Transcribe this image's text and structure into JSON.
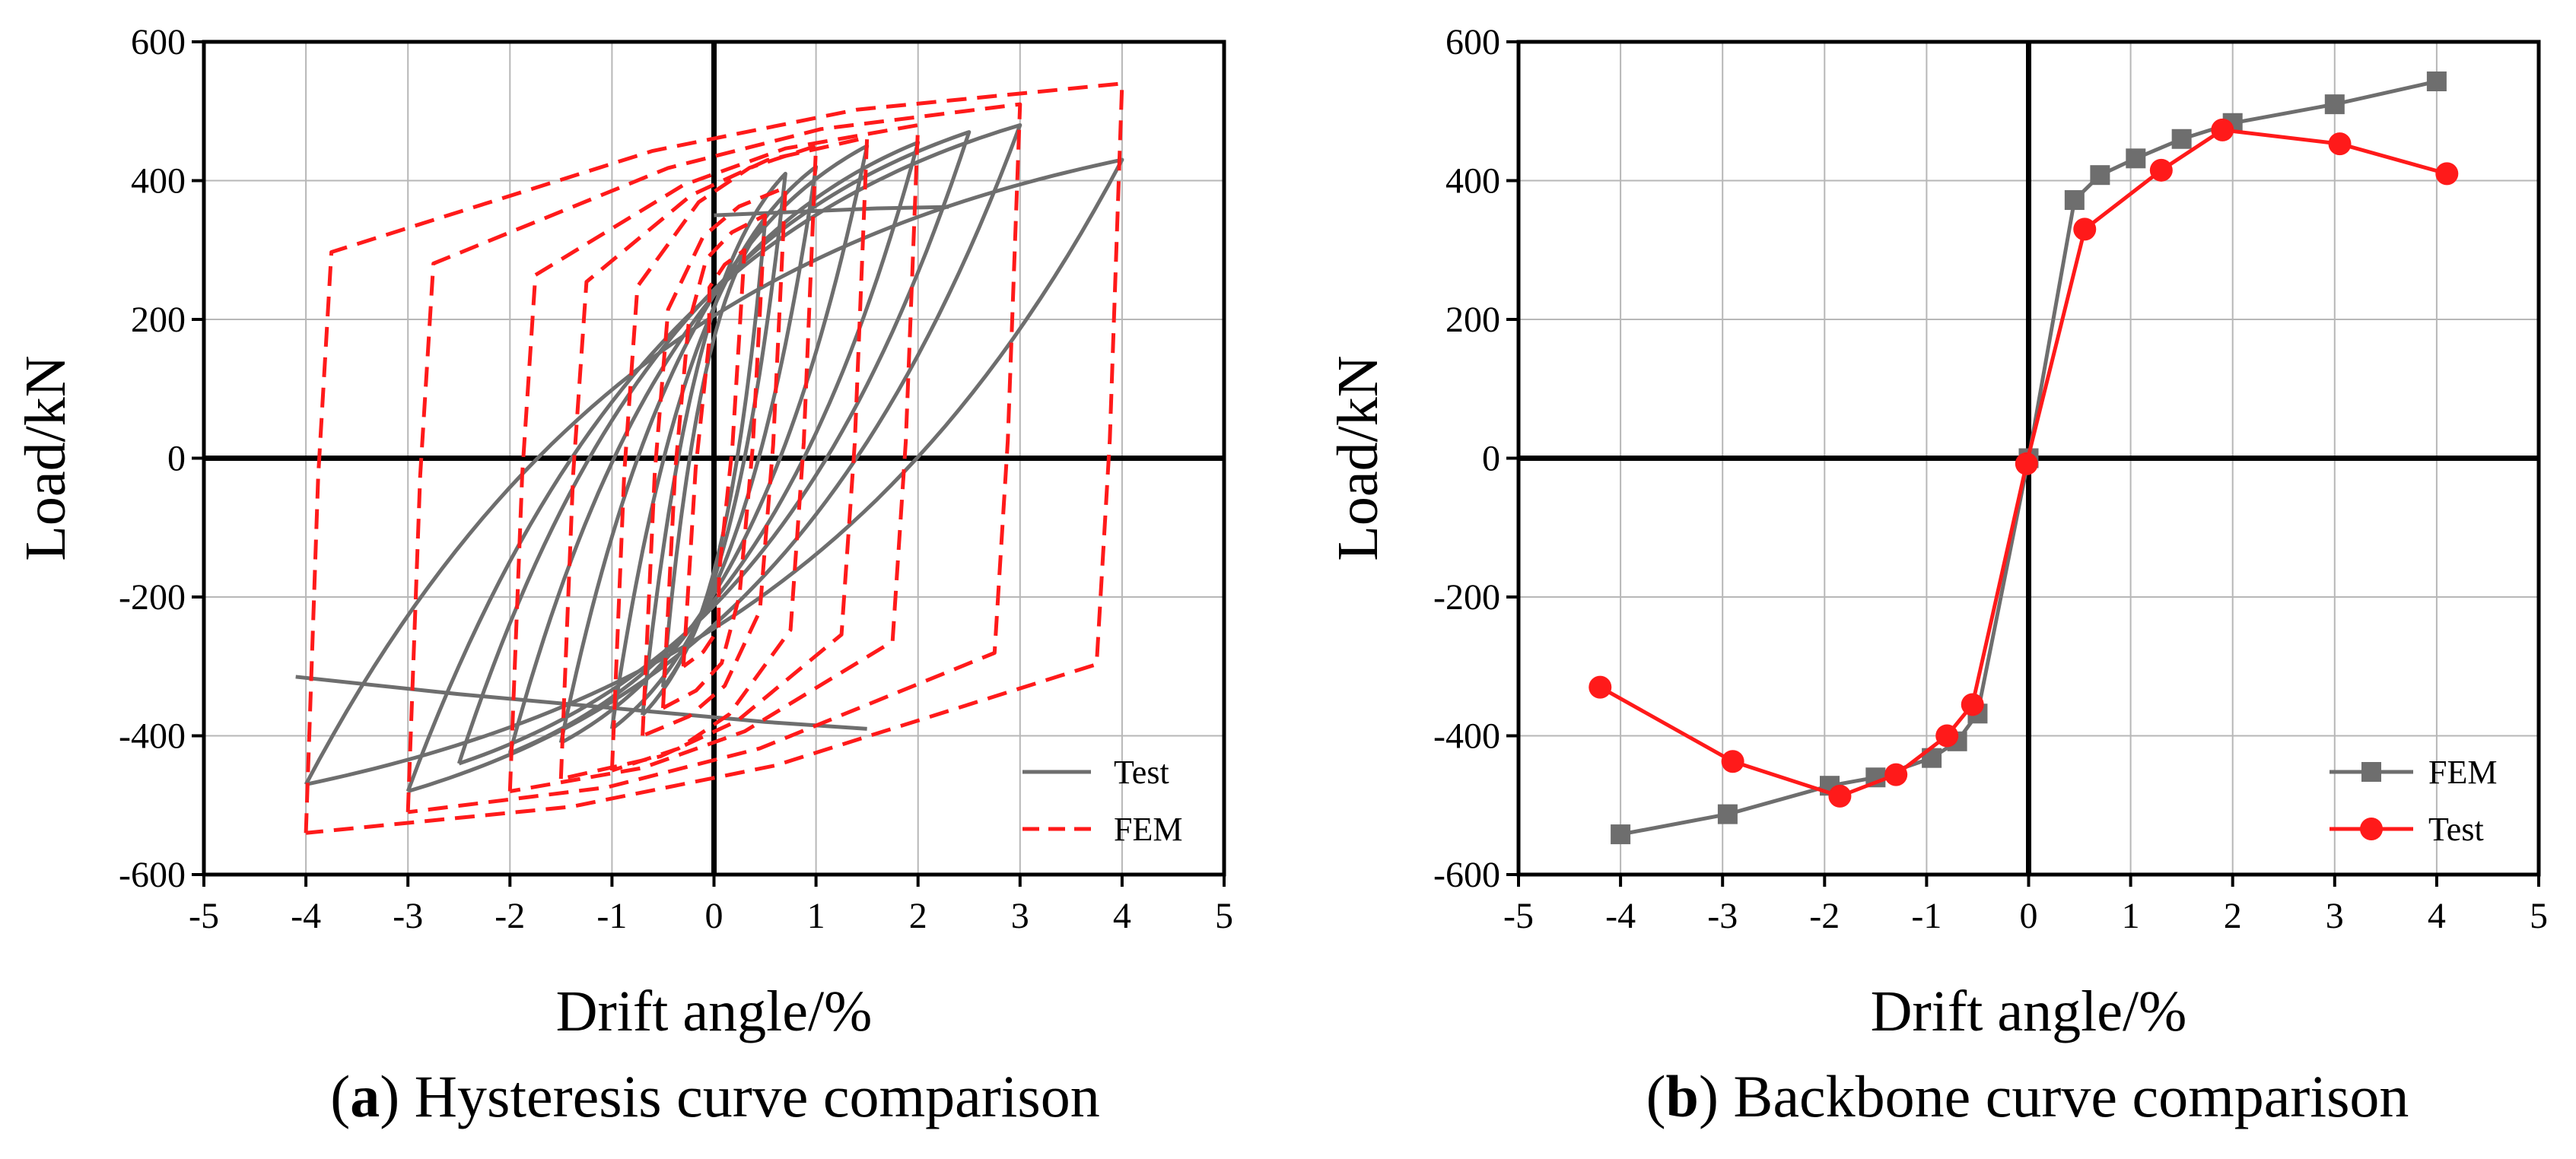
{
  "chart_data": [
    {
      "type": "line",
      "panel": "a",
      "caption_letter": "a",
      "caption_text": " Hysteresis curve comparison",
      "caption_open": "(",
      "caption_close": ")",
      "xlabel": "Drift angle/%",
      "ylabel": "Load/kN",
      "xlim": [
        -5,
        5
      ],
      "ylim": [
        -600,
        600
      ],
      "xticks": [
        -5,
        -4,
        -3,
        -2,
        -1,
        0,
        1,
        2,
        3,
        4,
        5
      ],
      "yticks": [
        -600,
        -400,
        -200,
        0,
        200,
        400,
        600
      ],
      "grid": true,
      "legend_position": "bottom-right",
      "colors": {
        "Test": "#6e6e6e",
        "FEM": "#ff1a1a"
      },
      "series": [
        {
          "name": "Test",
          "style": "solid",
          "cycles": [
            {
              "amp": 0.5,
              "pmax": 340,
              "pmin": -330,
              "fix": 20
            },
            {
              "amp": 0.7,
              "pmax": 410,
              "pmin": -370,
              "fix": 30
            },
            {
              "amp": 1.0,
              "pmax": 420,
              "pmin": -390,
              "fix": 40
            },
            {
              "amp": 1.5,
              "pmax": 450,
              "pmin": -410,
              "fix": 50
            },
            {
              "amp": 2.0,
              "pmax": 455,
              "pmin": -425,
              "fix": 60
            },
            {
              "amp": 2.5,
              "pmax": 470,
              "pmin": -440,
              "fix": 70
            },
            {
              "amp": 3.0,
              "pmax": 480,
              "pmin": -480,
              "fix": 80
            },
            {
              "amp": 4.0,
              "pmax": 430,
              "pmin": -470,
              "fix": 90
            }
          ],
          "extra_path": [
            [
              -4.1,
              -315
            ],
            [
              -2.5,
              -340
            ],
            [
              0.5,
              -380
            ],
            [
              1.5,
              -390
            ]
          ],
          "tail_path": [
            [
              0.0,
              350
            ],
            [
              0.8,
              355
            ],
            [
              1.6,
              360
            ],
            [
              2.3,
              362
            ]
          ]
        },
        {
          "name": "FEM",
          "style": "dashed",
          "cycles": [
            {
              "amp": 0.3,
              "pmax": 300,
              "pmin": -300
            },
            {
              "amp": 0.5,
              "pmax": 350,
              "pmin": -360
            },
            {
              "amp": 0.7,
              "pmax": 390,
              "pmin": -400
            },
            {
              "amp": 1.0,
              "pmax": 450,
              "pmin": -450
            },
            {
              "amp": 1.5,
              "pmax": 462,
              "pmin": -462
            },
            {
              "amp": 2.0,
              "pmax": 480,
              "pmin": -480
            },
            {
              "amp": 3.0,
              "pmax": 510,
              "pmin": -510
            },
            {
              "amp": 4.0,
              "pmax": 540,
              "pmin": -540
            }
          ]
        }
      ]
    },
    {
      "type": "line",
      "panel": "b",
      "caption_letter": "b",
      "caption_text": " Backbone curve comparison",
      "caption_open": "(",
      "caption_close": ")",
      "xlabel": "Drift angle/%",
      "ylabel": "Load/kN",
      "xlim": [
        -5,
        5
      ],
      "ylim": [
        -600,
        600
      ],
      "xticks": [
        -5,
        -4,
        -3,
        -2,
        -1,
        0,
        1,
        2,
        3,
        4,
        5
      ],
      "yticks": [
        -600,
        -400,
        -200,
        0,
        200,
        400,
        600
      ],
      "grid": true,
      "legend_position": "bottom-right",
      "colors": {
        "FEM": "#6e6e6e",
        "Test": "#ff1a1a"
      },
      "series": [
        {
          "name": "FEM",
          "marker": "square",
          "x": [
            -4.0,
            -2.95,
            -1.95,
            -1.5,
            -0.95,
            -0.7,
            -0.5,
            0.0,
            0.45,
            0.7,
            1.05,
            1.5,
            2.0,
            3.0,
            4.0
          ],
          "y": [
            -542,
            -513,
            -472,
            -460,
            -432,
            -408,
            -368,
            0,
            372,
            408,
            432,
            460,
            483,
            510,
            543
          ]
        },
        {
          "name": "Test",
          "marker": "circle",
          "x": [
            -4.2,
            -2.9,
            -1.85,
            -1.3,
            -0.8,
            -0.55,
            -0.02,
            0.55,
            1.3,
            1.9,
            3.05,
            4.1
          ],
          "y": [
            -330,
            -437,
            -487,
            -456,
            -400,
            -355,
            -8,
            330,
            415,
            473,
            453,
            410
          ]
        }
      ]
    }
  ]
}
